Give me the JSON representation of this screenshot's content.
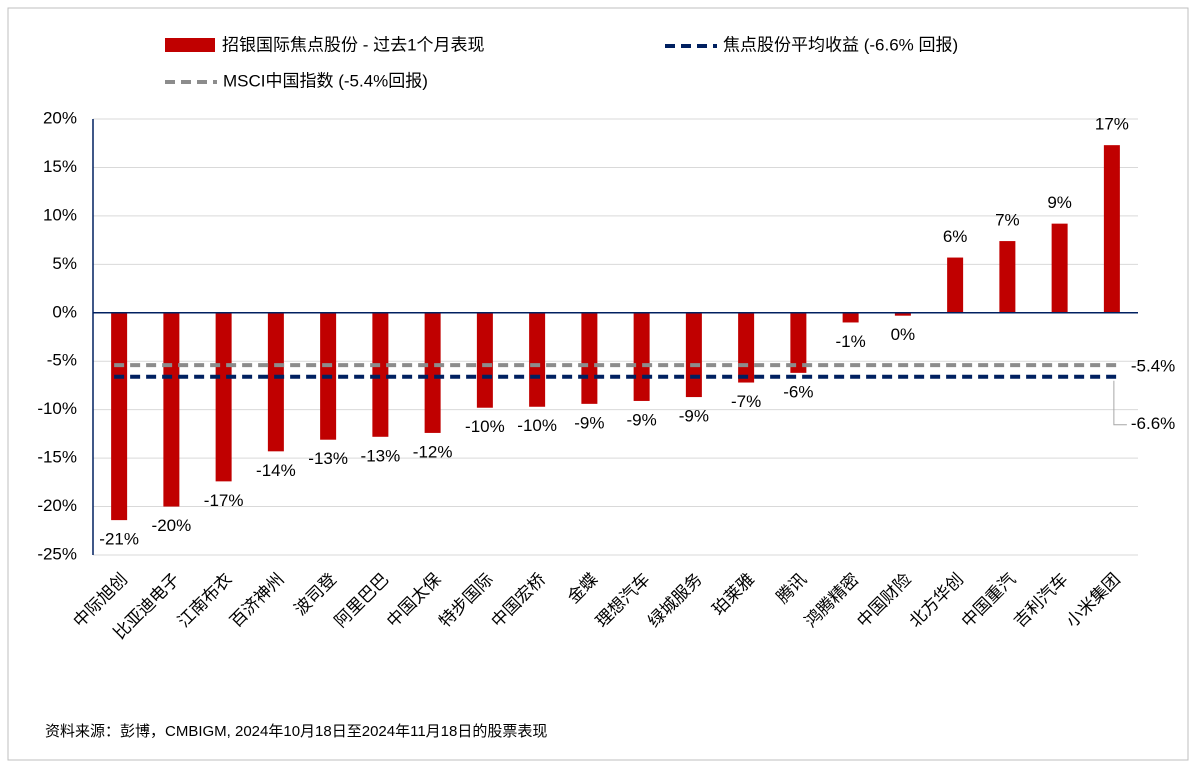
{
  "chart_data": {
    "type": "bar",
    "categories": [
      "中际旭创",
      "比亚迪电子",
      "江南布衣",
      "百济神州",
      "波司登",
      "阿里巴巴",
      "中国太保",
      "特步国际",
      "中国宏桥",
      "金蝶",
      "理想汽车",
      "绿城服务",
      "珀莱雅",
      "腾讯",
      "鸿腾精密",
      "中国财险",
      "北方华创",
      "中国重汽",
      "吉利汽车",
      "小米集团"
    ],
    "series": [
      {
        "name": "招银国际焦点股份 - 过去1个月表现",
        "color": "#c00000",
        "values": [
          -21.4,
          -20.0,
          -17.4,
          -14.3,
          -13.1,
          -12.8,
          -12.4,
          -9.8,
          -9.7,
          -9.4,
          -9.1,
          -8.7,
          -7.2,
          -6.2,
          -1.0,
          -0.3,
          5.7,
          7.4,
          9.2,
          17.3
        ],
        "value_labels": [
          "-21%",
          "-20%",
          "-17%",
          "-14%",
          "-13%",
          "-13%",
          "-12%",
          "-10%",
          "-10%",
          "-9%",
          "-9%",
          "-9%",
          "-7%",
          "-6%",
          "-1%",
          "0%",
          "6%",
          "7%",
          "9%",
          "17%"
        ]
      }
    ],
    "reference_lines": [
      {
        "name": "焦点股份平均收益 (-6.6% 回报)",
        "value": -6.6,
        "value_label": "-6.6%",
        "color": "#002060"
      },
      {
        "name": "MSCI中国指数 (-5.4%回报)",
        "value": -5.4,
        "value_label": "-5.4%",
        "color": "#8c8c8c"
      }
    ],
    "ylim": [
      -25,
      20
    ],
    "yticks": [
      {
        "value": -25,
        "label": "-25%"
      },
      {
        "value": -20,
        "label": "-20%"
      },
      {
        "value": -15,
        "label": "-15%"
      },
      {
        "value": -10,
        "label": "-10%"
      },
      {
        "value": -5,
        "label": "-5%"
      },
      {
        "value": 0,
        "label": "0%"
      },
      {
        "value": 5,
        "label": "5%"
      },
      {
        "value": 10,
        "label": "10%"
      },
      {
        "value": 15,
        "label": "15%"
      },
      {
        "value": 20,
        "label": "20%"
      }
    ],
    "grid": true,
    "source": "资料来源：彭博，CMBIGM, 2024年10月18日至2024年11月18日的股票表现"
  }
}
